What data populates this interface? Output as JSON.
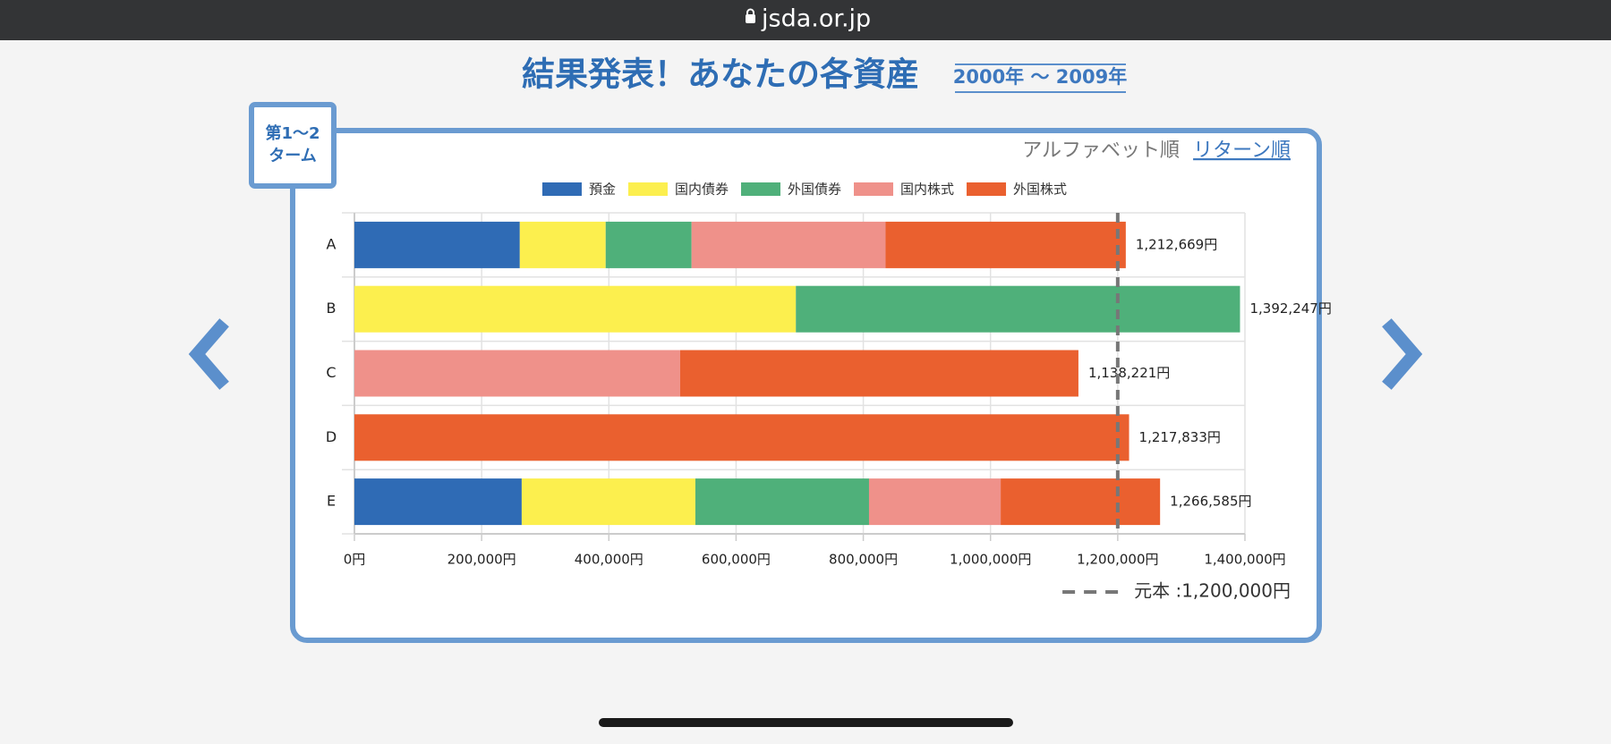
{
  "browser": {
    "url": "jsda.or.jp"
  },
  "header": {
    "title": "結果発表！あなたの各資産",
    "period": "2000年 〜 2009年"
  },
  "term_badge": [
    "第1〜2",
    "ターム"
  ],
  "sort": {
    "options": [
      "アルファベット順",
      "リターン順"
    ]
  },
  "chart_data": {
    "type": "stacked-bar-horizontal",
    "categories": [
      "A",
      "B",
      "C",
      "D",
      "E"
    ],
    "series": [
      {
        "name": "預金",
        "color": "#2f6bb5",
        "values": [
          260000,
          0,
          0,
          0,
          263000
        ]
      },
      {
        "name": "国内債券",
        "color": "#fcef4e",
        "values": [
          135000,
          694000,
          0,
          0,
          273000
        ]
      },
      {
        "name": "外国債券",
        "color": "#4fb07a",
        "values": [
          135000,
          698247,
          0,
          0,
          273000
        ]
      },
      {
        "name": "国内株式",
        "color": "#ef918a",
        "values": [
          305000,
          0,
          512000,
          0,
          207000
        ]
      },
      {
        "name": "外国株式",
        "color": "#ea602f",
        "values": [
          377669,
          0,
          626221,
          1217833,
          250585
        ]
      }
    ],
    "totals": [
      1212669,
      1392247,
      1138221,
      1217833,
      1266585
    ],
    "total_labels": [
      "1,212,669円",
      "1,392,247円",
      "1,138,221円",
      "1,217,833円",
      "1,266,585円"
    ],
    "xlim": [
      0,
      1400000
    ],
    "xticks": [
      {
        "value": 0,
        "label": "0円"
      },
      {
        "value": 200000,
        "label": "200,000円"
      },
      {
        "value": 400000,
        "label": "400,000円"
      },
      {
        "value": 600000,
        "label": "600,000円"
      },
      {
        "value": 800000,
        "label": "800,000円"
      },
      {
        "value": 1000000,
        "label": "1,000,000円"
      },
      {
        "value": 1200000,
        "label": "1,200,000円"
      },
      {
        "value": 1400000,
        "label": "1,400,000円"
      }
    ],
    "reference": {
      "value": 1200000,
      "label": "元本 :1,200,000円",
      "color": "#777777"
    },
    "grid": true
  }
}
